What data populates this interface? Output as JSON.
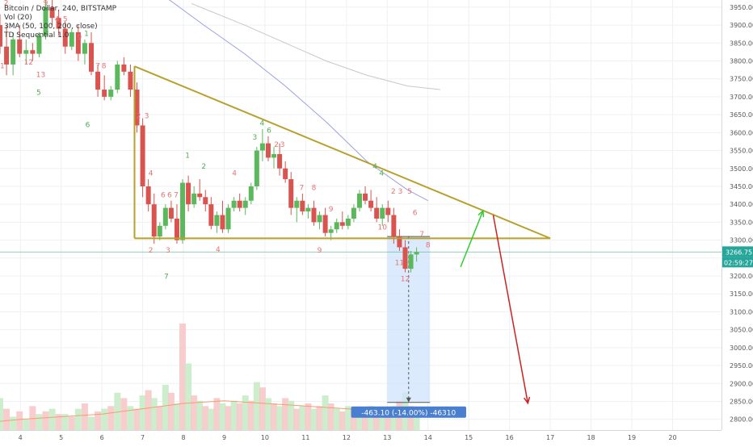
{
  "legend": {
    "title": "Bitcoin / Dollar, 240, BITSTAMP",
    "volume": "Vol (20)",
    "ma": "3MA (50, 100, 200, close)",
    "td": "TD Sequential 1.0"
  },
  "price_labels": {
    "last_price": "3266.75",
    "countdown": "02:59:27"
  },
  "measure_label": "-463.10 (-14.00%) -46310",
  "colors": {
    "up": "#26a69a",
    "down": "#ef5350",
    "up_candle": "#5cb85c",
    "down_candle": "#d9534f",
    "triangle": "#b8a02c",
    "ma_fast": "#9aa0e0",
    "ma_slow": "#c8c8c8",
    "vol_ma": "#f0a070",
    "td_green": "#4caf50",
    "td_red": "#e57373",
    "measure_fill": "#cfe3fb",
    "measure_label_bg": "#4a7fd0",
    "arrow_up": "#33cc33",
    "arrow_down": "#cc2222",
    "price_line": "#66bb99",
    "price_badge": "#26a69a"
  },
  "chart_data": {
    "type": "candlestick",
    "title": "Bitcoin / Dollar, 240, BITSTAMP",
    "ylim": [
      2770,
      3970
    ],
    "xlim": [
      3.5,
      21.2
    ],
    "y_ticks": [
      "3950.00",
      "3900.00",
      "3850.00",
      "3800.00",
      "3750.00",
      "3700.00",
      "3650.00",
      "3600.00",
      "3550.00",
      "3500.00",
      "3450.00",
      "3400.00",
      "3350.00",
      "3300.00",
      "3250.00",
      "3200.00",
      "3150.00",
      "3100.00",
      "3050.00",
      "3000.00",
      "2950.00",
      "2900.00",
      "2850.00",
      "2800.00"
    ],
    "x_ticks": [
      {
        "label": "4",
        "x": 4
      },
      {
        "label": "5",
        "x": 5
      },
      {
        "label": "6",
        "x": 6
      },
      {
        "label": "7",
        "x": 7
      },
      {
        "label": "8",
        "x": 8
      },
      {
        "label": "9",
        "x": 9
      },
      {
        "label": "10",
        "x": 10
      },
      {
        "label": "11",
        "x": 11
      },
      {
        "label": "12",
        "x": 12
      },
      {
        "label": "13",
        "x": 13
      },
      {
        "label": "14",
        "x": 14
      },
      {
        "label": "15",
        "x": 15
      },
      {
        "label": "16",
        "x": 16
      },
      {
        "label": "17",
        "x": 17
      },
      {
        "label": "18",
        "x": 18
      },
      {
        "label": "19",
        "x": 19
      },
      {
        "label": "20",
        "x": 20
      }
    ],
    "candles": [
      [
        3.35,
        3960,
        3975,
        3880,
        3900
      ],
      [
        3.5,
        3900,
        3930,
        3820,
        3840
      ],
      [
        3.66,
        3840,
        3900,
        3760,
        3790
      ],
      [
        3.82,
        3790,
        3880,
        3760,
        3860
      ],
      [
        3.98,
        3860,
        3900,
        3810,
        3820
      ],
      [
        4.14,
        3820,
        3860,
        3790,
        3830
      ],
      [
        4.3,
        3830,
        3850,
        3800,
        3820
      ],
      [
        4.46,
        3820,
        3880,
        3810,
        3870
      ],
      [
        4.62,
        3870,
        3970,
        3860,
        3950
      ],
      [
        4.78,
        3950,
        3970,
        3900,
        3920
      ],
      [
        4.94,
        3920,
        3940,
        3870,
        3890
      ],
      [
        5.1,
        3890,
        3910,
        3820,
        3840
      ],
      [
        5.26,
        3840,
        3890,
        3830,
        3880
      ],
      [
        5.42,
        3880,
        3900,
        3800,
        3820
      ],
      [
        5.58,
        3820,
        3860,
        3790,
        3850
      ],
      [
        5.74,
        3850,
        3880,
        3760,
        3770
      ],
      [
        5.9,
        3770,
        3790,
        3700,
        3720
      ],
      [
        6.06,
        3720,
        3760,
        3690,
        3700
      ],
      [
        6.22,
        3700,
        3730,
        3690,
        3720
      ],
      [
        6.38,
        3720,
        3800,
        3710,
        3790
      ],
      [
        6.54,
        3790,
        3810,
        3760,
        3770
      ],
      [
        6.7,
        3770,
        3790,
        3700,
        3720
      ],
      [
        6.86,
        3720,
        3740,
        3600,
        3620
      ],
      [
        7.0,
        3620,
        3640,
        3420,
        3450
      ],
      [
        7.14,
        3450,
        3470,
        3380,
        3400
      ],
      [
        7.28,
        3400,
        3430,
        3290,
        3310
      ],
      [
        7.42,
        3310,
        3350,
        3300,
        3340
      ],
      [
        7.56,
        3340,
        3400,
        3330,
        3390
      ],
      [
        7.7,
        3390,
        3410,
        3350,
        3360
      ],
      [
        7.84,
        3360,
        3400,
        3290,
        3300
      ],
      [
        7.98,
        3300,
        3470,
        3290,
        3460
      ],
      [
        8.12,
        3460,
        3480,
        3380,
        3400
      ],
      [
        8.26,
        3400,
        3450,
        3390,
        3430
      ],
      [
        8.4,
        3430,
        3470,
        3410,
        3420
      ],
      [
        8.54,
        3420,
        3440,
        3380,
        3400
      ],
      [
        8.68,
        3400,
        3420,
        3330,
        3340
      ],
      [
        8.82,
        3340,
        3380,
        3320,
        3370
      ],
      [
        8.96,
        3370,
        3410,
        3320,
        3330
      ],
      [
        9.1,
        3330,
        3400,
        3320,
        3390
      ],
      [
        9.24,
        3390,
        3420,
        3380,
        3410
      ],
      [
        9.38,
        3410,
        3430,
        3380,
        3390
      ],
      [
        9.52,
        3390,
        3420,
        3370,
        3410
      ],
      [
        9.66,
        3410,
        3460,
        3400,
        3450
      ],
      [
        9.8,
        3450,
        3560,
        3440,
        3550
      ],
      [
        9.94,
        3550,
        3610,
        3520,
        3570
      ],
      [
        10.08,
        3570,
        3590,
        3520,
        3530
      ],
      [
        10.22,
        3530,
        3560,
        3500,
        3540
      ],
      [
        10.36,
        3540,
        3570,
        3480,
        3500
      ],
      [
        10.5,
        3500,
        3520,
        3460,
        3470
      ],
      [
        10.64,
        3470,
        3490,
        3370,
        3390
      ],
      [
        10.78,
        3390,
        3420,
        3350,
        3410
      ],
      [
        10.92,
        3410,
        3430,
        3370,
        3380
      ],
      [
        11.06,
        3380,
        3400,
        3360,
        3390
      ],
      [
        11.2,
        3390,
        3410,
        3340,
        3350
      ],
      [
        11.34,
        3350,
        3380,
        3330,
        3370
      ],
      [
        11.48,
        3370,
        3390,
        3310,
        3320
      ],
      [
        11.62,
        3320,
        3340,
        3300,
        3330
      ],
      [
        11.76,
        3330,
        3360,
        3320,
        3350
      ],
      [
        11.9,
        3350,
        3380,
        3330,
        3340
      ],
      [
        12.04,
        3340,
        3370,
        3330,
        3360
      ],
      [
        12.18,
        3360,
        3400,
        3350,
        3390
      ],
      [
        12.32,
        3390,
        3440,
        3380,
        3430
      ],
      [
        12.46,
        3430,
        3450,
        3400,
        3410
      ],
      [
        12.6,
        3410,
        3440,
        3380,
        3390
      ],
      [
        12.74,
        3390,
        3420,
        3350,
        3360
      ],
      [
        12.88,
        3360,
        3400,
        3340,
        3390
      ],
      [
        13.02,
        3390,
        3410,
        3350,
        3370
      ],
      [
        13.16,
        3370,
        3390,
        3290,
        3310
      ],
      [
        13.3,
        3310,
        3330,
        3270,
        3280
      ],
      [
        13.44,
        3280,
        3300,
        3210,
        3220
      ],
      [
        13.58,
        3220,
        3270,
        3210,
        3260
      ],
      [
        13.72,
        3260,
        3280,
        3240,
        3267
      ]
    ],
    "triangle": {
      "upper": [
        [
          6.8,
          3785
        ],
        [
          17.0,
          3305
        ]
      ],
      "lower": [
        [
          6.8,
          3305
        ],
        [
          17.0,
          3305
        ]
      ]
    },
    "measure": {
      "x0": 13.0,
      "x1": 14.05,
      "y0": 3310,
      "y1": 2847,
      "change": -463.1,
      "percent": -14.0
    },
    "arrows": [
      {
        "color": "up",
        "from": [
          14.8,
          3225
        ],
        "to": [
          15.35,
          3382
        ]
      },
      {
        "color": "down",
        "from": [
          15.6,
          3370
        ],
        "to": [
          16.45,
          2845
        ]
      }
    ],
    "ma_fast": [
      [
        7.6,
        3975
      ],
      [
        8.5,
        3900
      ],
      [
        9.5,
        3820
      ],
      [
        10.5,
        3730
      ],
      [
        11.5,
        3630
      ],
      [
        12.5,
        3520
      ],
      [
        13.5,
        3440
      ],
      [
        14.0,
        3410
      ]
    ],
    "ma_slow": [
      [
        8.2,
        3960
      ],
      [
        9.5,
        3900
      ],
      [
        10.5,
        3850
      ],
      [
        11.5,
        3800
      ],
      [
        12.5,
        3760
      ],
      [
        13.5,
        3730
      ],
      [
        14.3,
        3720
      ]
    ],
    "td_marks": [
      {
        "x": 3.45,
        "y": 3955,
        "t": "1",
        "c": "td_red"
      },
      {
        "x": 3.65,
        "y": 3955,
        "t": "2",
        "c": "td_red"
      },
      {
        "x": 4.62,
        "y": 3955,
        "t": "9",
        "c": "td_red"
      },
      {
        "x": 4.9,
        "y": 3910,
        "t": "4",
        "c": "td_red"
      },
      {
        "x": 5.1,
        "y": 3910,
        "t": "5",
        "c": "td_red"
      },
      {
        "x": 5.45,
        "y": 3860,
        "t": "9",
        "c": "td_red"
      },
      {
        "x": 5.62,
        "y": 3870,
        "t": "1",
        "c": "td_green"
      },
      {
        "x": 5.9,
        "y": 3780,
        "t": "7",
        "c": "td_red"
      },
      {
        "x": 6.05,
        "y": 3780,
        "t": "8",
        "c": "td_red"
      },
      {
        "x": 6.9,
        "y": 3640,
        "t": "2",
        "c": "td_red"
      },
      {
        "x": 7.1,
        "y": 3640,
        "t": "3",
        "c": "td_red"
      },
      {
        "x": 7.2,
        "y": 3480,
        "t": "4",
        "c": "td_red"
      },
      {
        "x": 7.5,
        "y": 3420,
        "t": "6",
        "c": "td_red"
      },
      {
        "x": 7.66,
        "y": 3420,
        "t": "6",
        "c": "td_red"
      },
      {
        "x": 7.82,
        "y": 3420,
        "t": "7",
        "c": "td_red"
      },
      {
        "x": 8.1,
        "y": 3530,
        "t": "1",
        "c": "td_green"
      },
      {
        "x": 8.5,
        "y": 3500,
        "t": "2",
        "c": "td_green"
      },
      {
        "x": 9.25,
        "y": 3480,
        "t": "4",
        "c": "td_red"
      },
      {
        "x": 9.93,
        "y": 3620,
        "t": "4",
        "c": "td_green"
      },
      {
        "x": 9.75,
        "y": 3580,
        "t": "3",
        "c": "td_green"
      },
      {
        "x": 10.1,
        "y": 3600,
        "t": "6",
        "c": "td_green"
      },
      {
        "x": 10.28,
        "y": 3560,
        "t": "2",
        "c": "td_red"
      },
      {
        "x": 10.43,
        "y": 3560,
        "t": "3",
        "c": "td_red"
      },
      {
        "x": 10.9,
        "y": 3440,
        "t": "7",
        "c": "td_red"
      },
      {
        "x": 11.2,
        "y": 3440,
        "t": "8",
        "c": "td_red"
      },
      {
        "x": 11.62,
        "y": 3380,
        "t": "9",
        "c": "td_red"
      },
      {
        "x": 12.7,
        "y": 3500,
        "t": "4",
        "c": "td_green"
      },
      {
        "x": 12.86,
        "y": 3480,
        "t": "4",
        "c": "td_green"
      },
      {
        "x": 13.15,
        "y": 3430,
        "t": "2",
        "c": "td_red"
      },
      {
        "x": 13.32,
        "y": 3430,
        "t": "3",
        "c": "td_red"
      },
      {
        "x": 13.55,
        "y": 3430,
        "t": "5",
        "c": "td_red"
      },
      {
        "x": 13.68,
        "y": 3370,
        "t": "6",
        "c": "td_red"
      },
      {
        "x": 13.85,
        "y": 3310,
        "t": "7",
        "c": "td_red"
      },
      {
        "x": 14.0,
        "y": 3280,
        "t": "8",
        "c": "td_red"
      },
      {
        "x": 3.5,
        "y": 3780,
        "t": "11",
        "c": "td_red"
      },
      {
        "x": 4.2,
        "y": 3790,
        "t": "12",
        "c": "td_red"
      },
      {
        "x": 4.5,
        "y": 3755,
        "t": "13",
        "c": "td_red"
      },
      {
        "x": 4.45,
        "y": 3705,
        "t": "5",
        "c": "td_green"
      },
      {
        "x": 5.65,
        "y": 3615,
        "t": "6",
        "c": "td_green"
      },
      {
        "x": 7.2,
        "y": 3265,
        "t": "2",
        "c": "td_red"
      },
      {
        "x": 7.62,
        "y": 3265,
        "t": "3",
        "c": "td_red"
      },
      {
        "x": 8.85,
        "y": 3268,
        "t": "4",
        "c": "td_red"
      },
      {
        "x": 7.58,
        "y": 3192,
        "t": "7",
        "c": "td_green"
      },
      {
        "x": 11.34,
        "y": 3265,
        "t": "9",
        "c": "td_red"
      },
      {
        "x": 12.88,
        "y": 3330,
        "t": "10",
        "c": "td_red"
      },
      {
        "x": 13.3,
        "y": 3230,
        "t": "11",
        "c": "td_red"
      },
      {
        "x": 13.44,
        "y": 3185,
        "t": "12",
        "c": "td_red"
      }
    ],
    "volume": [
      [
        3.35,
        4,
        0
      ],
      [
        3.5,
        12,
        1
      ],
      [
        3.66,
        8,
        0
      ],
      [
        3.82,
        5,
        1
      ],
      [
        3.98,
        7,
        0
      ],
      [
        4.14,
        4,
        1
      ],
      [
        4.3,
        9,
        0
      ],
      [
        4.46,
        6,
        1
      ],
      [
        4.62,
        7,
        0
      ],
      [
        4.78,
        8,
        1
      ],
      [
        4.94,
        6,
        0
      ],
      [
        5.1,
        6,
        1
      ],
      [
        5.26,
        5,
        0
      ],
      [
        5.42,
        8,
        1
      ],
      [
        5.58,
        10,
        0
      ],
      [
        5.74,
        5,
        1
      ],
      [
        5.9,
        7,
        0
      ],
      [
        6.06,
        8,
        1
      ],
      [
        6.22,
        9,
        0
      ],
      [
        6.38,
        14,
        1
      ],
      [
        6.54,
        12,
        0
      ],
      [
        6.7,
        9,
        1
      ],
      [
        6.86,
        8,
        0
      ],
      [
        7.0,
        13,
        1
      ],
      [
        7.14,
        15,
        0
      ],
      [
        7.28,
        12,
        1
      ],
      [
        7.42,
        9,
        0
      ],
      [
        7.56,
        17,
        1
      ],
      [
        7.7,
        14,
        0
      ],
      [
        7.84,
        10,
        1
      ],
      [
        7.98,
        40,
        0
      ],
      [
        8.12,
        25,
        1
      ],
      [
        8.26,
        13,
        0
      ],
      [
        8.4,
        11,
        1
      ],
      [
        8.54,
        9,
        0
      ],
      [
        8.68,
        8,
        1
      ],
      [
        8.82,
        12,
        0
      ],
      [
        8.96,
        10,
        1
      ],
      [
        9.1,
        9,
        0
      ],
      [
        9.24,
        11,
        1
      ],
      [
        9.38,
        10,
        0
      ],
      [
        9.52,
        13,
        1
      ],
      [
        9.66,
        11,
        0
      ],
      [
        9.8,
        18,
        1
      ],
      [
        9.94,
        16,
        0
      ],
      [
        10.08,
        12,
        1
      ],
      [
        10.22,
        10,
        0
      ],
      [
        10.36,
        9,
        1
      ],
      [
        10.5,
        12,
        0
      ],
      [
        10.64,
        11,
        1
      ],
      [
        10.78,
        8,
        0
      ],
      [
        10.92,
        9,
        1
      ],
      [
        11.06,
        10,
        0
      ],
      [
        11.2,
        8,
        1
      ],
      [
        11.34,
        9,
        0
      ],
      [
        11.48,
        13,
        1
      ],
      [
        11.62,
        10,
        0
      ],
      [
        11.76,
        8,
        1
      ],
      [
        11.9,
        7,
        0
      ],
      [
        12.04,
        9,
        1
      ],
      [
        12.18,
        8,
        0
      ],
      [
        12.32,
        7,
        1
      ],
      [
        12.46,
        6,
        0
      ],
      [
        12.6,
        9,
        1
      ],
      [
        12.74,
        8,
        0
      ],
      [
        12.88,
        6,
        1
      ],
      [
        13.02,
        7,
        0
      ],
      [
        13.16,
        9,
        1
      ],
      [
        13.3,
        11,
        0
      ],
      [
        13.44,
        14,
        1
      ],
      [
        13.58,
        9,
        0
      ],
      [
        13.72,
        6,
        1
      ]
    ],
    "vol_ma": [
      [
        3.3,
        3
      ],
      [
        4.0,
        4
      ],
      [
        5.0,
        5
      ],
      [
        6.0,
        6
      ],
      [
        7.0,
        8
      ],
      [
        8.0,
        10
      ],
      [
        9.0,
        11
      ],
      [
        10.0,
        10
      ],
      [
        11.0,
        9
      ],
      [
        12.0,
        8
      ],
      [
        13.0,
        7
      ],
      [
        14.0,
        6
      ]
    ]
  }
}
